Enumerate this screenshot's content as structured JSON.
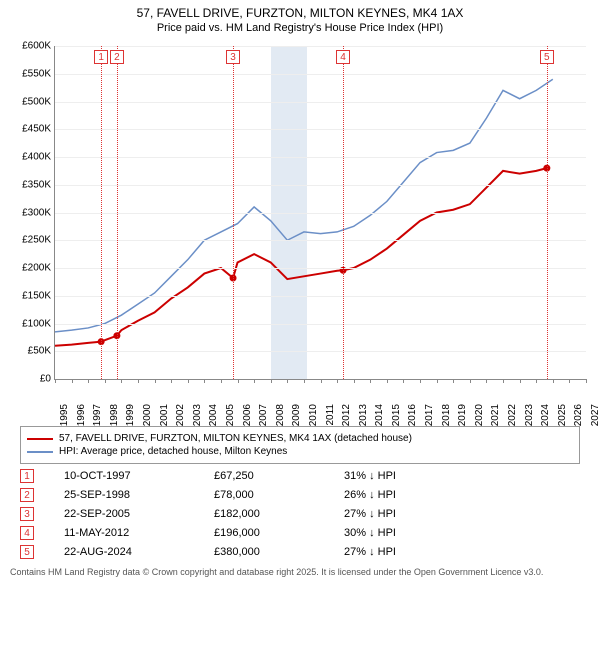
{
  "title": "57, FAVELL DRIVE, FURZTON, MILTON KEYNES, MK4 1AX",
  "subtitle": "Price paid vs. HM Land Registry's House Price Index (HPI)",
  "chart": {
    "type": "line",
    "y": {
      "min": 0,
      "max": 600000,
      "step": 50000,
      "prefix": "£",
      "suffixK": true
    },
    "x": {
      "min": 1995,
      "max": 2027,
      "step": 1
    },
    "grid_color": "#eeeeee",
    "axis_color": "#888888",
    "background": "#ffffff",
    "recession_band": {
      "start": 2008,
      "end": 2010.2,
      "color": "#e2eaf3"
    },
    "series": [
      {
        "name": "57, FAVELL DRIVE, FURZTON, MILTON KEYNES, MK4 1AX (detached house)",
        "color": "#cc0000",
        "width": 2,
        "points": [
          [
            1995,
            60000
          ],
          [
            1996,
            62000
          ],
          [
            1997,
            65000
          ],
          [
            1997.8,
            67250
          ],
          [
            1998,
            70000
          ],
          [
            1998.73,
            78000
          ],
          [
            1999,
            88000
          ],
          [
            2000,
            105000
          ],
          [
            2001,
            120000
          ],
          [
            2002,
            145000
          ],
          [
            2003,
            165000
          ],
          [
            2004,
            190000
          ],
          [
            2005,
            200000
          ],
          [
            2005.73,
            182000
          ],
          [
            2006,
            210000
          ],
          [
            2007,
            225000
          ],
          [
            2008,
            210000
          ],
          [
            2009,
            180000
          ],
          [
            2010,
            185000
          ],
          [
            2011,
            190000
          ],
          [
            2012,
            195000
          ],
          [
            2012.36,
            196000
          ],
          [
            2013,
            200000
          ],
          [
            2014,
            215000
          ],
          [
            2015,
            235000
          ],
          [
            2016,
            260000
          ],
          [
            2017,
            285000
          ],
          [
            2018,
            300000
          ],
          [
            2019,
            305000
          ],
          [
            2020,
            315000
          ],
          [
            2021,
            345000
          ],
          [
            2022,
            375000
          ],
          [
            2023,
            370000
          ],
          [
            2024,
            375000
          ],
          [
            2024.64,
            380000
          ]
        ]
      },
      {
        "name": "HPI: Average price, detached house, Milton Keynes",
        "color": "#6b8fc7",
        "width": 1.5,
        "points": [
          [
            1995,
            85000
          ],
          [
            1996,
            88000
          ],
          [
            1997,
            92000
          ],
          [
            1998,
            100000
          ],
          [
            1999,
            115000
          ],
          [
            2000,
            135000
          ],
          [
            2001,
            155000
          ],
          [
            2002,
            185000
          ],
          [
            2003,
            215000
          ],
          [
            2004,
            250000
          ],
          [
            2005,
            265000
          ],
          [
            2006,
            280000
          ],
          [
            2007,
            310000
          ],
          [
            2008,
            285000
          ],
          [
            2009,
            250000
          ],
          [
            2010,
            265000
          ],
          [
            2011,
            262000
          ],
          [
            2012,
            265000
          ],
          [
            2013,
            275000
          ],
          [
            2014,
            295000
          ],
          [
            2015,
            320000
          ],
          [
            2016,
            355000
          ],
          [
            2017,
            390000
          ],
          [
            2018,
            408000
          ],
          [
            2019,
            412000
          ],
          [
            2020,
            425000
          ],
          [
            2021,
            470000
          ],
          [
            2022,
            520000
          ],
          [
            2023,
            505000
          ],
          [
            2024,
            520000
          ],
          [
            2025,
            540000
          ]
        ]
      }
    ],
    "sale_markers": [
      {
        "n": "1",
        "year": 1997.78,
        "date": "10-OCT-1997",
        "price": 67250,
        "price_label": "£67,250",
        "delta": "31% ↓ HPI"
      },
      {
        "n": "2",
        "year": 1998.73,
        "date": "25-SEP-1998",
        "price": 78000,
        "price_label": "£78,000",
        "delta": "26% ↓ HPI"
      },
      {
        "n": "3",
        "year": 2005.73,
        "date": "22-SEP-2005",
        "price": 182000,
        "price_label": "£182,000",
        "delta": "27% ↓ HPI"
      },
      {
        "n": "4",
        "year": 2012.36,
        "date": "11-MAY-2012",
        "price": 196000,
        "price_label": "£196,000",
        "delta": "30% ↓ HPI"
      },
      {
        "n": "5",
        "year": 2024.64,
        "date": "22-AUG-2024",
        "price": 380000,
        "price_label": "£380,000",
        "delta": "27% ↓ HPI"
      }
    ]
  },
  "footnote": "Contains HM Land Registry data © Crown copyright and database right 2025. It is licensed under the Open Government Licence v3.0."
}
